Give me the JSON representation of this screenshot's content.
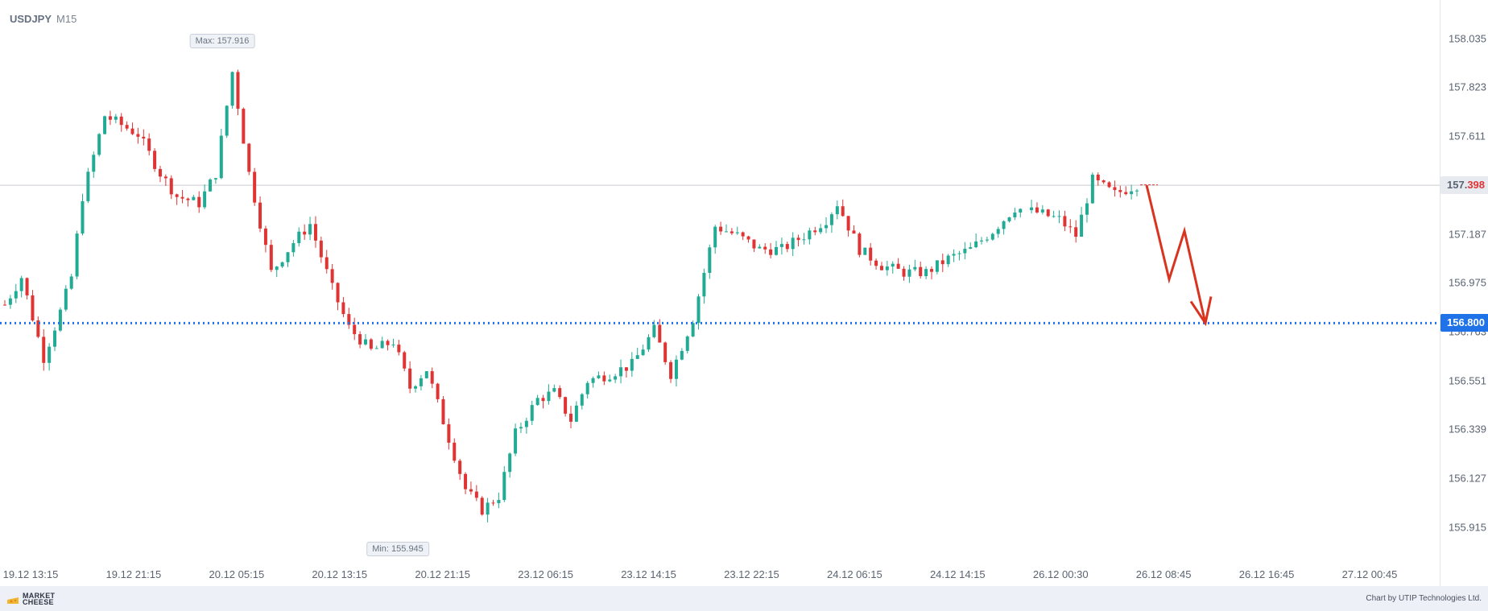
{
  "header": {
    "symbol": "USDJPY",
    "timeframe": "M15"
  },
  "annotations": {
    "max_label": "Max: 157.916",
    "min_label": "Min: 155.945"
  },
  "price_tags": {
    "last_price_prefix": "157.",
    "last_price_highlight": "398",
    "target_price": "156.800"
  },
  "footer": {
    "brand_line1": "MARKET",
    "brand_line2": "CHEESE",
    "credit": "Chart by UTIP Technologies Ltd."
  },
  "colors": {
    "bull": "#22ab94",
    "bear": "#e03434",
    "target_line": "#1f72e8",
    "arrow": "#d9341f",
    "last_price_line": "#c9ccd2"
  },
  "chart_data": {
    "type": "candlestick",
    "symbol": "USDJPY",
    "timeframe": "M15",
    "y_ticks": [
      "158.035",
      "157.823",
      "157.611",
      "157.398",
      "157.187",
      "156.975",
      "156.763",
      "156.551",
      "156.339",
      "156.127",
      "155.915"
    ],
    "ylim": [
      155.855,
      158.09
    ],
    "x_ticks": [
      "19.12 13:15",
      "19.12 21:15",
      "20.12 05:15",
      "20.12 13:15",
      "20.12 21:15",
      "23.12 06:15",
      "23.12 14:15",
      "23.12 22:15",
      "24.12 06:15",
      "24.12 14:15",
      "26.12 00:30",
      "26.12 08:45",
      "26.12 16:45",
      "27.12 00:45"
    ],
    "max": 157.916,
    "min": 155.945,
    "last_price": 157.398,
    "target_level": 156.8,
    "forecast_path": [
      157.398,
      156.99,
      157.2,
      156.8
    ],
    "close_path": [
      [
        0,
        156.88
      ],
      [
        3,
        157.0
      ],
      [
        7,
        156.65
      ],
      [
        10,
        156.85
      ],
      [
        12,
        157.0
      ],
      [
        14,
        157.35
      ],
      [
        18,
        157.7
      ],
      [
        24,
        157.62
      ],
      [
        28,
        157.45
      ],
      [
        31,
        157.35
      ],
      [
        35,
        157.32
      ],
      [
        38,
        157.45
      ],
      [
        41,
        157.89
      ],
      [
        44,
        157.45
      ],
      [
        48,
        157.02
      ],
      [
        52,
        157.15
      ],
      [
        55,
        157.23
      ],
      [
        59,
        156.95
      ],
      [
        62,
        156.78
      ],
      [
        66,
        156.68
      ],
      [
        70,
        156.72
      ],
      [
        73,
        156.52
      ],
      [
        76,
        156.6
      ],
      [
        80,
        156.3
      ],
      [
        83,
        156.08
      ],
      [
        86,
        155.99
      ],
      [
        89,
        156.05
      ],
      [
        92,
        156.32
      ],
      [
        96,
        156.47
      ],
      [
        99,
        156.5
      ],
      [
        102,
        156.38
      ],
      [
        105,
        156.55
      ],
      [
        109,
        156.58
      ],
      [
        113,
        156.62
      ],
      [
        117,
        156.77
      ],
      [
        120,
        156.58
      ],
      [
        124,
        156.82
      ],
      [
        128,
        157.22
      ],
      [
        132,
        157.18
      ],
      [
        136,
        157.12
      ],
      [
        140,
        157.12
      ],
      [
        144,
        157.18
      ],
      [
        148,
        157.25
      ],
      [
        150,
        157.32
      ],
      [
        154,
        157.12
      ],
      [
        158,
        157.05
      ],
      [
        162,
        157.02
      ],
      [
        166,
        157.02
      ],
      [
        170,
        157.08
      ],
      [
        174,
        157.12
      ],
      [
        178,
        157.2
      ],
      [
        182,
        157.3
      ],
      [
        186,
        157.28
      ],
      [
        190,
        157.25
      ],
      [
        193,
        157.18
      ],
      [
        196,
        157.42
      ],
      [
        200,
        157.36
      ],
      [
        204,
        157.4
      ]
    ]
  }
}
